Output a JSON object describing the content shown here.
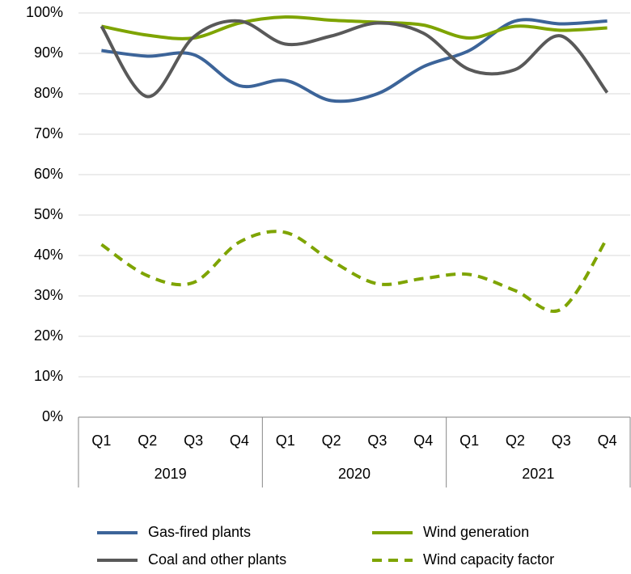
{
  "chart_data": {
    "type": "line",
    "categories": [
      "Q1",
      "Q2",
      "Q3",
      "Q4",
      "Q1",
      "Q2",
      "Q3",
      "Q4",
      "Q1",
      "Q2",
      "Q3",
      "Q4"
    ],
    "category_groups": [
      "2019",
      "2020",
      "2021"
    ],
    "series": [
      {
        "name": "Gas-fired plants",
        "color": "#3c6499",
        "style": "solid",
        "values": [
          90.7,
          89.3,
          89.7,
          82,
          83.3,
          78.3,
          80,
          86.7,
          90.7,
          98,
          97.3,
          98
        ]
      },
      {
        "name": "Wind generation",
        "color": "#7ea400",
        "style": "solid",
        "values": [
          96.7,
          94.5,
          93.8,
          97.5,
          99,
          98.2,
          97.7,
          97,
          93.8,
          96.7,
          95.7,
          96.3
        ]
      },
      {
        "name": "Coal and other plants",
        "color": "#595959",
        "style": "solid",
        "values": [
          96.7,
          79.3,
          94,
          98,
          92.3,
          94.3,
          97.5,
          95,
          86,
          86,
          94.3,
          80.3
        ]
      },
      {
        "name": "Wind capacity factor",
        "color": "#7ea400",
        "style": "dashed",
        "values": [
          42.7,
          35,
          33.3,
          43.3,
          45.7,
          38.7,
          33,
          34.3,
          35.3,
          31.3,
          26.7,
          44.3
        ]
      }
    ],
    "ylim": [
      0,
      100
    ],
    "yticks": [
      {
        "value": 0,
        "label": "0%"
      },
      {
        "value": 10,
        "label": "10%"
      },
      {
        "value": 20,
        "label": "20%"
      },
      {
        "value": 30,
        "label": "30%"
      },
      {
        "value": 40,
        "label": "40%"
      },
      {
        "value": 50,
        "label": "50%"
      },
      {
        "value": 60,
        "label": "60%"
      },
      {
        "value": 70,
        "label": "70%"
      },
      {
        "value": 80,
        "label": "80%"
      },
      {
        "value": 90,
        "label": "90%"
      },
      {
        "value": 100,
        "label": "100%"
      }
    ],
    "grid": true
  }
}
